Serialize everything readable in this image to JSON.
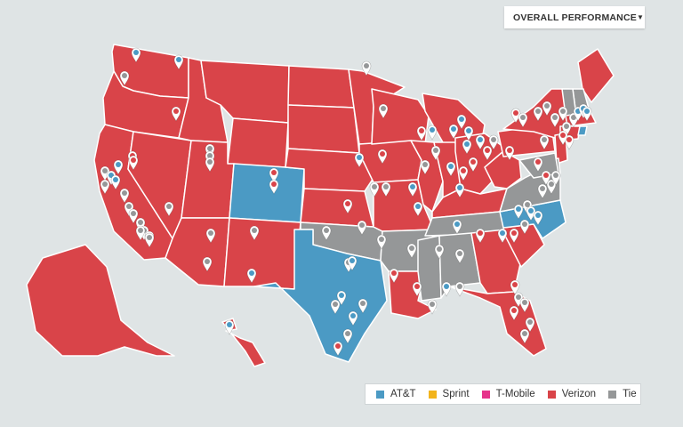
{
  "filter": {
    "selected": "OVERALL PERFORMANCE",
    "caret_icon": "chevron-down-icon"
  },
  "colors": {
    "att": "#4b9ac4",
    "sprint": "#f2b41c",
    "tmobile": "#e6338b",
    "verizon": "#d94449",
    "tie": "#959798",
    "background": "#dfe4e5",
    "border": "#ffffff"
  },
  "legend": [
    {
      "label": "AT&T",
      "key": "att",
      "color": "#4b9ac4"
    },
    {
      "label": "Sprint",
      "key": "sprint",
      "color": "#f2b41c"
    },
    {
      "label": "T-Mobile",
      "key": "tmobile",
      "color": "#e6338b"
    },
    {
      "label": "Verizon",
      "key": "verizon",
      "color": "#d94449"
    },
    {
      "label": "Tie",
      "key": "tie",
      "color": "#959798"
    }
  ],
  "state_winners": {
    "WA": "verizon",
    "OR": "verizon",
    "CA": "verizon",
    "NV": "verizon",
    "ID": "verizon",
    "MT": "verizon",
    "WY": "verizon",
    "UT": "verizon",
    "AZ": "verizon",
    "CO": "att",
    "NM": "verizon",
    "ND": "verizon",
    "SD": "verizon",
    "NE": "verizon",
    "KS": "verizon",
    "OK": "tie",
    "TX": "att",
    "MN": "verizon",
    "IA": "verizon",
    "MO": "verizon",
    "AR": "tie",
    "LA": "verizon",
    "WI": "verizon",
    "IL": "verizon",
    "MI": "verizon",
    "IN": "verizon",
    "OH": "verizon",
    "KY": "verizon",
    "TN": "tie",
    "MS": "tie",
    "AL": "tie",
    "GA": "verizon",
    "FL": "verizon",
    "SC": "verizon",
    "NC": "att",
    "VA": "tie",
    "WV": "verizon",
    "PA": "verizon",
    "NY": "verizon",
    "ME": "verizon",
    "NH": "tie",
    "VT": "tie",
    "MA": "verizon",
    "CT": "verizon",
    "NJ": "verizon",
    "DE": "tie",
    "MD": "tie",
    "RI": "att",
    "AK": "verizon",
    "HI": "verizon"
  },
  "city_markers": {
    "att": 38,
    "verizon": 52,
    "tie": 48
  }
}
